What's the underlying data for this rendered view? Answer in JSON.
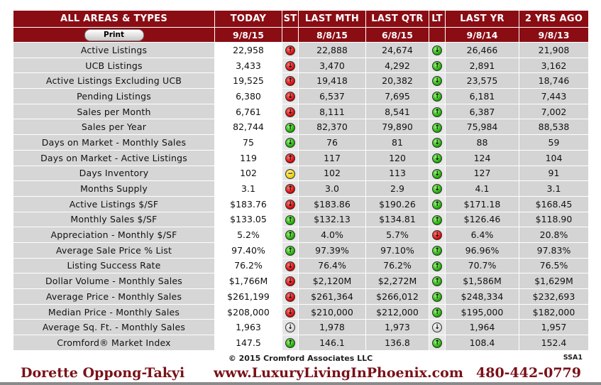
{
  "header": {
    "title": "ALL AREAS & TYPES",
    "print_label": "Print",
    "columns": [
      {
        "label": "TODAY",
        "date": "9/8/15"
      },
      {
        "label": "ST",
        "date": ""
      },
      {
        "label": "LAST MTH",
        "date": "8/8/15"
      },
      {
        "label": "LAST QTR",
        "date": "6/8/15"
      },
      {
        "label": "LT",
        "date": ""
      },
      {
        "label": "LAST YR",
        "date": "9/8/14"
      },
      {
        "label": "2 YRS AGO",
        "date": "9/8/13"
      }
    ]
  },
  "rows": [
    {
      "label": "Active Listings",
      "today": "22,958",
      "st": "red-up",
      "last_mth": "22,888",
      "last_qtr": "24,674",
      "lt": "green-down",
      "last_yr": "26,466",
      "two_yrs": "21,908"
    },
    {
      "label": "UCB Listings",
      "today": "3,433",
      "st": "red-down",
      "last_mth": "3,470",
      "last_qtr": "4,292",
      "lt": "green-up",
      "last_yr": "2,891",
      "two_yrs": "3,162"
    },
    {
      "label": "Active Listings Excluding UCB",
      "today": "19,525",
      "st": "red-up",
      "last_mth": "19,418",
      "last_qtr": "20,382",
      "lt": "green-down",
      "last_yr": "23,575",
      "two_yrs": "18,746"
    },
    {
      "label": "Pending Listings",
      "today": "6,380",
      "st": "red-down",
      "last_mth": "6,537",
      "last_qtr": "7,695",
      "lt": "green-up",
      "last_yr": "6,181",
      "two_yrs": "7,443"
    },
    {
      "label": "Sales per Month",
      "today": "6,761",
      "st": "red-down",
      "last_mth": "8,111",
      "last_qtr": "8,541",
      "lt": "green-up",
      "last_yr": "6,387",
      "two_yrs": "7,002"
    },
    {
      "label": "Sales per Year",
      "today": "82,744",
      "st": "green-up",
      "last_mth": "82,370",
      "last_qtr": "79,890",
      "lt": "green-up",
      "last_yr": "75,984",
      "two_yrs": "88,538"
    },
    {
      "label": "Days on Market - Monthly Sales",
      "today": "75",
      "st": "green-down",
      "last_mth": "76",
      "last_qtr": "81",
      "lt": "green-down",
      "last_yr": "88",
      "two_yrs": "59"
    },
    {
      "label": "Days on Market - Active Listings",
      "today": "119",
      "st": "red-up",
      "last_mth": "117",
      "last_qtr": "120",
      "lt": "green-down",
      "last_yr": "124",
      "two_yrs": "104"
    },
    {
      "label": "Days Inventory",
      "today": "102",
      "st": "yellow-flat",
      "last_mth": "102",
      "last_qtr": "113",
      "lt": "green-down",
      "last_yr": "127",
      "two_yrs": "91"
    },
    {
      "label": "Months Supply",
      "today": "3.1",
      "st": "red-up",
      "last_mth": "3.0",
      "last_qtr": "2.9",
      "lt": "green-down",
      "last_yr": "4.1",
      "two_yrs": "3.1"
    },
    {
      "label": "Active Listings $/SF",
      "today": "$183.76",
      "st": "red-down",
      "last_mth": "$183.86",
      "last_qtr": "$190.26",
      "lt": "green-up",
      "last_yr": "$171.18",
      "two_yrs": "$168.45"
    },
    {
      "label": "Monthly Sales $/SF",
      "today": "$133.05",
      "st": "green-up",
      "last_mth": "$132.13",
      "last_qtr": "$134.81",
      "lt": "green-up",
      "last_yr": "$126.46",
      "two_yrs": "$118.90"
    },
    {
      "label": "Appreciation - Monthly $/SF",
      "today": "5.2%",
      "st": "green-up",
      "last_mth": "4.0%",
      "last_qtr": "5.7%",
      "lt": "red-down",
      "last_yr": "6.4%",
      "two_yrs": "20.8%"
    },
    {
      "label": "Average Sale Price % List",
      "today": "97.40%",
      "st": "green-up",
      "last_mth": "97.39%",
      "last_qtr": "97.10%",
      "lt": "green-up",
      "last_yr": "96.96%",
      "two_yrs": "97.83%"
    },
    {
      "label": "Listing Success Rate",
      "today": "76.2%",
      "st": "red-down",
      "last_mth": "76.4%",
      "last_qtr": "76.2%",
      "lt": "green-up",
      "last_yr": "70.7%",
      "two_yrs": "76.5%"
    },
    {
      "label": "Dollar Volume - Monthly Sales",
      "today": "$1,766M",
      "st": "red-down",
      "last_mth": "$2,120M",
      "last_qtr": "$2,272M",
      "lt": "green-up",
      "last_yr": "$1,586M",
      "two_yrs": "$1,629M"
    },
    {
      "label": "Average Price - Monthly Sales",
      "today": "$261,199",
      "st": "red-down",
      "last_mth": "$261,364",
      "last_qtr": "$266,012",
      "lt": "green-up",
      "last_yr": "$248,334",
      "two_yrs": "$232,693"
    },
    {
      "label": "Median Price - Monthly Sales",
      "today": "$208,000",
      "st": "red-down",
      "last_mth": "$210,000",
      "last_qtr": "$212,000",
      "lt": "green-up",
      "last_yr": "$195,000",
      "two_yrs": "$182,000"
    },
    {
      "label": "Average Sq. Ft. - Monthly Sales",
      "today": "1,963",
      "st": "white-down",
      "last_mth": "1,978",
      "last_qtr": "1,973",
      "lt": "white-down",
      "last_yr": "1,964",
      "two_yrs": "1,957"
    },
    {
      "label": "Cromford® Market Index",
      "today": "147.5",
      "st": "green-up",
      "last_mth": "146.1",
      "last_qtr": "136.8",
      "lt": "green-up",
      "last_yr": "108.4",
      "two_yrs": "152.4"
    }
  ],
  "footer": {
    "copyright": "© 2015 Cromford Associates LLC",
    "code": "SSA1",
    "agent_name": "Dorette Oppong-Takyi",
    "website": "www.LuxuryLivingInPhoenix.com",
    "phone": "480-442-0779"
  },
  "colors": {
    "header_bg": "#8a0d14",
    "footer_text": "#7a1118",
    "indicator_red": "#d00000",
    "indicator_green": "#18a000",
    "indicator_yellow": "#e8c800"
  }
}
